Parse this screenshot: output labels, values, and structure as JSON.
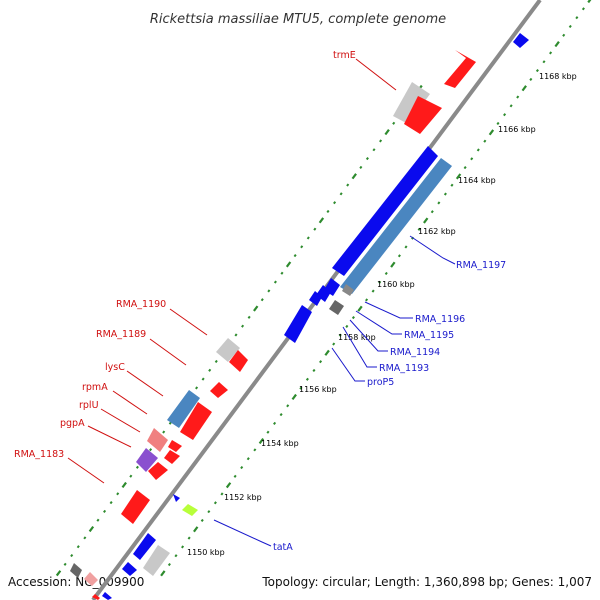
{
  "title": "Rickettsia massiliae MTU5, complete genome",
  "footer": {
    "accession": "Accession: NC_009900",
    "summary": "Topology: circular; Length: 1,360,898 bp; Genes: 1,007"
  },
  "kbp_ticks": [
    "1150 kbp",
    "1152 kbp",
    "1154 kbp",
    "1156 kbp",
    "1158 kbp",
    "1160 kbp",
    "1162 kbp",
    "1164 kbp",
    "1166 kbp",
    "1168 kbp"
  ],
  "gene_labels_left": [
    "trmE",
    "RMA_1190",
    "RMA_1189",
    "lysC",
    "rpmA",
    "rplU",
    "pgpA",
    "RMA_1183"
  ],
  "gene_labels_right": [
    "RMA_1197",
    "RMA_1196",
    "RMA_1195",
    "RMA_1194",
    "RMA_1193",
    "proP5",
    "tatA"
  ],
  "colors": {
    "backbone": "#8a8a8a",
    "tick": "#2e8b2e",
    "cds_forward": "#ff1a1a",
    "cds_reverse": "#0a0aee",
    "steelblue": "#4a86c0",
    "label_red": "#d01010",
    "label_blue": "#1a1acc"
  }
}
